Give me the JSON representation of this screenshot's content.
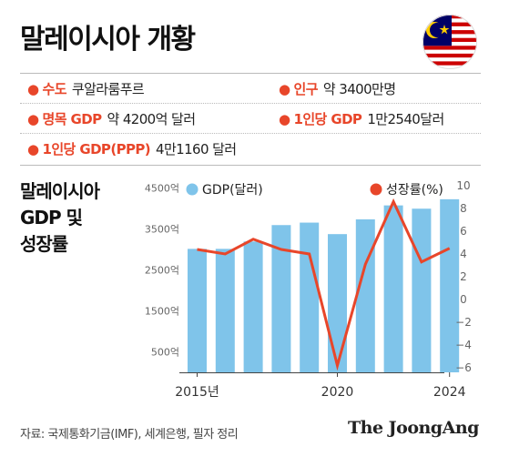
{
  "title": "말레이시아 개황",
  "info": {
    "capital_label": "수도",
    "capital_value": "쿠알라룸푸르",
    "population_label": "인구",
    "population_value": "약 3400만명",
    "gdp_label": "명목 GDP",
    "gdp_value": "약 4200억 달러",
    "gdp_pc_label": "1인당 GDP",
    "gdp_pc_value": "1만2540달러",
    "gdp_ppp_label": "1인당 GDP(PPP)",
    "gdp_ppp_value": "4만1160 달러"
  },
  "chart_title_lines": [
    "말레이시아",
    "GDP 및",
    "성장률"
  ],
  "source": "자료: 국제통화기금(IMF), 세계은행, 필자 정리",
  "logo": "The JoongAng",
  "colors": {
    "bar": "#7fc4ea",
    "line": "#e8462a",
    "accent": "#e8462a",
    "axis_text": "#666666"
  },
  "chart_data": {
    "type": "bar+line",
    "x": [
      2015,
      2016,
      2017,
      2018,
      2019,
      2020,
      2021,
      2022,
      2023,
      2024
    ],
    "x_tick_labels": [
      {
        "x": 2015,
        "label": "2015년"
      },
      {
        "x": 2020,
        "label": "2020"
      },
      {
        "x": 2024,
        "label": "2024"
      }
    ],
    "series": [
      {
        "name": "GDP(달러)",
        "type": "bar",
        "axis": "left",
        "values": [
          3010,
          3010,
          3190,
          3590,
          3650,
          3370,
          3730,
          4070,
          3990,
          4220
        ]
      },
      {
        "name": "성장률(%)",
        "type": "line",
        "axis": "right",
        "values": [
          4.4,
          4.0,
          5.3,
          4.4,
          4.0,
          -5.8,
          3.1,
          8.6,
          3.3,
          4.5
        ]
      }
    ],
    "left_axis": {
      "ticks": [
        500,
        1500,
        2500,
        3500,
        4500
      ],
      "tick_labels": [
        "500억",
        "1500억",
        "2500억",
        "3500억",
        "4500억"
      ],
      "ylim": [
        0,
        4550
      ]
    },
    "right_axis": {
      "ticks": [
        -6,
        -4,
        -2,
        0,
        2,
        4,
        6,
        8,
        10
      ],
      "tick_labels": [
        "−6",
        "−4",
        "−2",
        "0",
        "2",
        "4",
        "6",
        "8",
        "10"
      ],
      "ylim": [
        -6.4,
        10
      ]
    },
    "legend_position": "top"
  }
}
